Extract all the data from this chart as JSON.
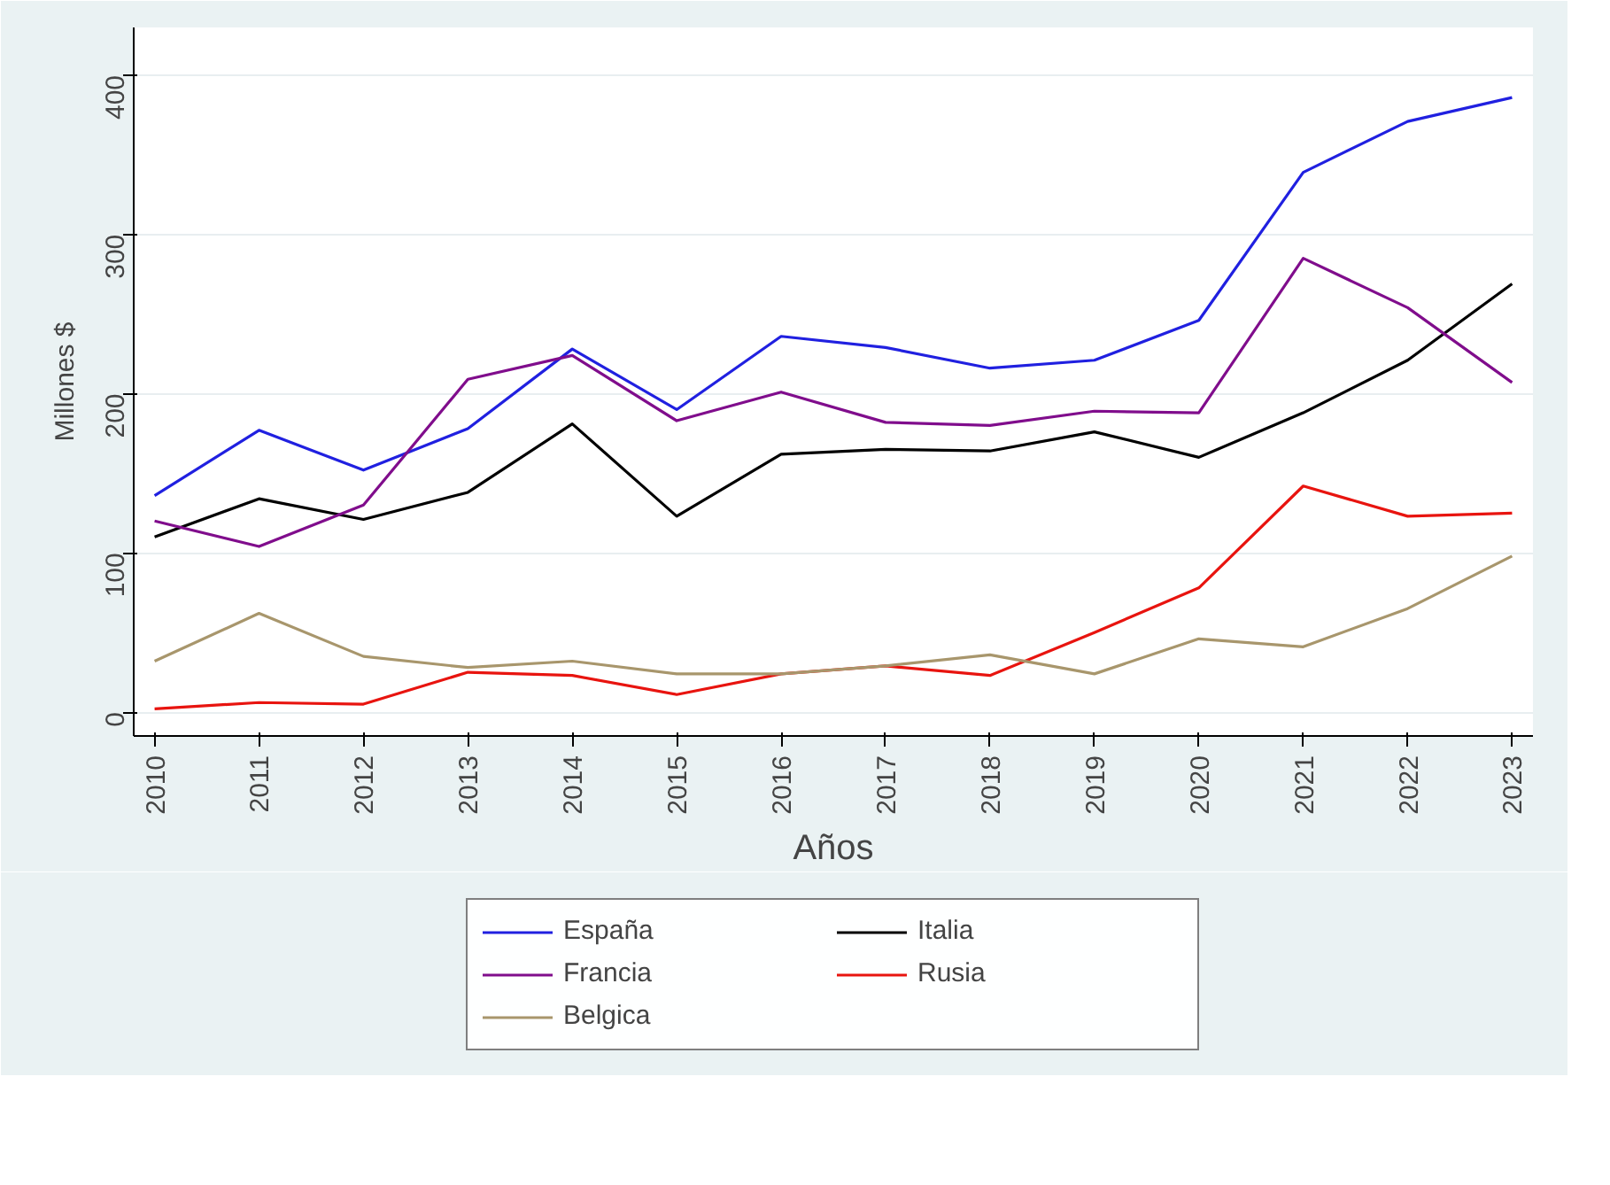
{
  "chart_data": {
    "type": "line",
    "xlabel": "Años",
    "ylabel": "Millones $",
    "x": [
      2010,
      2011,
      2012,
      2013,
      2014,
      2015,
      2016,
      2017,
      2018,
      2019,
      2020,
      2021,
      2022,
      2023
    ],
    "xlim": [
      2009.8,
      2023.2
    ],
    "xticks": [
      2010,
      2011,
      2012,
      2013,
      2014,
      2015,
      2016,
      2017,
      2018,
      2019,
      2020,
      2021,
      2022,
      2023
    ],
    "ylim": [
      -15,
      430
    ],
    "yticks": [
      0,
      100,
      200,
      300,
      400
    ],
    "grid": "y",
    "legend": "bottom",
    "marker": "none",
    "line_style": "solid",
    "series": [
      {
        "name": "España",
        "color": "#2020e0",
        "values": [
          136,
          177,
          152,
          178,
          228,
          190,
          236,
          229,
          216,
          221,
          246,
          339,
          371,
          386
        ]
      },
      {
        "name": "Italia",
        "color": "#000000",
        "values": [
          110,
          134,
          121,
          138,
          181,
          123,
          162,
          165,
          164,
          176,
          160,
          188,
          221,
          269
        ]
      },
      {
        "name": "Francia",
        "color": "#800d8c",
        "values": [
          120,
          104,
          130,
          209,
          224,
          183,
          201,
          182,
          180,
          189,
          188,
          285,
          254,
          207
        ]
      },
      {
        "name": "Rusia",
        "color": "#e8140f",
        "values": [
          2,
          6,
          5,
          25,
          23,
          11,
          24,
          29,
          23,
          50,
          78,
          142,
          123,
          125
        ]
      },
      {
        "name": "Belgica",
        "color": "#a8966c",
        "values": [
          32,
          62,
          35,
          28,
          32,
          24,
          24,
          29,
          36,
          24,
          46,
          41,
          65,
          98
        ]
      }
    ]
  }
}
